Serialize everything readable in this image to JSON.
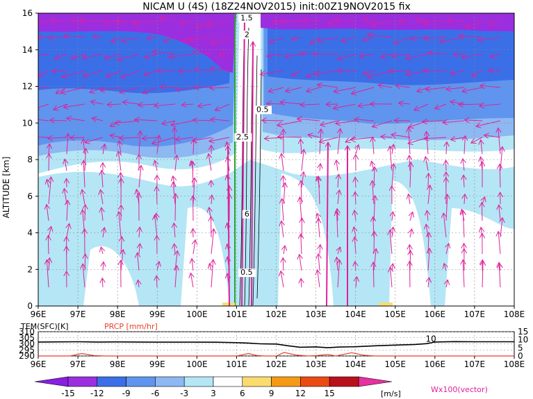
{
  "chart_data": [
    {
      "type": "heatmap",
      "title": "NICAM U (4S) (18Z24NOV2015) init:00Z19NOV2015 fix",
      "ylabel": "ALTITUDE [km]",
      "xlabel": "",
      "x_ticks": [
        "96E",
        "97E",
        "98E",
        "99E",
        "100E",
        "101E",
        "102E",
        "103E",
        "104E",
        "105E",
        "106E",
        "107E",
        "108E"
      ],
      "y_ticks": [
        "0",
        "2",
        "4",
        "6",
        "8",
        "10",
        "12",
        "14",
        "16"
      ],
      "xlim": [
        96,
        108
      ],
      "ylim": [
        0,
        16
      ],
      "grid": true,
      "contour_labels": [
        {
          "text": "1.5",
          "x": 101.1,
          "y": 15.6
        },
        {
          "text": "2",
          "x": 101.2,
          "y": 14.7
        },
        {
          "text": "0.5",
          "x": 101.5,
          "y": 10.6
        },
        {
          "text": "2.5",
          "x": 101.0,
          "y": 9.1
        },
        {
          "text": "6",
          "x": 101.2,
          "y": 4.9
        },
        {
          "text": "0.5",
          "x": 101.1,
          "y": 1.7
        }
      ],
      "vector_label": "Wx100(vector)",
      "colorbar": {
        "unit": "[m/s]",
        "tick_labels": [
          "-15",
          "-12",
          "-9",
          "-6",
          "-3",
          "3",
          "6",
          "9",
          "12",
          "15"
        ],
        "colors": [
          "#9B2FE0",
          "#3A6FE8",
          "#5F95EE",
          "#8DB8F2",
          "#B4E6F5",
          "#FFFFFF",
          "#FADB6E",
          "#F59A16",
          "#EA4A14",
          "#B9111C"
        ],
        "end_colors": {
          "low": "#8A1FE0",
          "high": "#E830A0"
        }
      }
    },
    {
      "type": "line",
      "series": [
        {
          "name": "TEM(SFC)[K]",
          "color": "#000000",
          "x": [
            96,
            96.5,
            97,
            97.5,
            98,
            98.5,
            99,
            99.5,
            100,
            100.5,
            101,
            101.3,
            101.6,
            102,
            102.3,
            102.6,
            103,
            103.3,
            103.6,
            104,
            104.5,
            105,
            105.5,
            105.8,
            106,
            106.5,
            107,
            108
          ],
          "values": [
            301.5,
            301.6,
            301.7,
            301.5,
            301.6,
            301.5,
            301.4,
            301.4,
            301.4,
            301.3,
            301,
            300.6,
            300,
            299.8,
            298.4,
            297.2,
            297.5,
            296.8,
            297.4,
            297.6,
            298.4,
            299,
            299.5,
            300.2,
            301.5,
            301.8,
            301.7,
            301.7
          ]
        },
        {
          "name": "PRCP [mm/hr]",
          "color": "#E8402A",
          "x": [
            96,
            96.8,
            97.1,
            97.4,
            97.7,
            98,
            99,
            100,
            101,
            101.3,
            101.5,
            101.7,
            102,
            102.2,
            102.5,
            102.8,
            103,
            103.3,
            103.5,
            103.9,
            104.2,
            104.5,
            105,
            106,
            107,
            108
          ],
          "values": [
            0,
            0,
            1.5,
            0.3,
            0,
            0,
            0,
            0,
            0,
            1.5,
            0.4,
            0,
            0,
            2.2,
            0.6,
            0,
            0.2,
            1,
            0,
            2,
            0.5,
            0,
            0,
            0,
            0,
            0
          ]
        }
      ],
      "left_ticks": [
        "310",
        "305",
        "300",
        "295",
        "290"
      ],
      "right_ticks": [
        "15",
        "10",
        "5",
        "0"
      ],
      "x_ticks": [
        "96E",
        "97E",
        "98E",
        "99E",
        "100E",
        "101E",
        "102E",
        "103E",
        "104E",
        "105E",
        "106E",
        "107E",
        "108E"
      ],
      "annotation": {
        "text": "10",
        "x": 105.9,
        "y": 300.6
      },
      "left_range": [
        290,
        310
      ],
      "right_range": [
        0,
        15
      ]
    }
  ]
}
